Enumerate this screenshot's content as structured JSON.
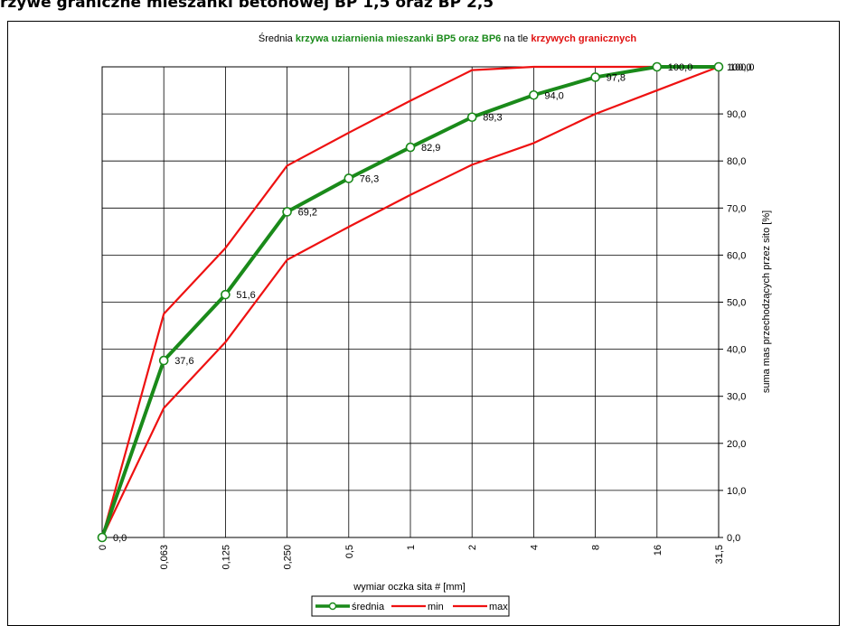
{
  "heading": "rzywe graniczne mieszanki betonowej BP 1,5 oraz BP 2,5",
  "chart_data": {
    "type": "line",
    "title_parts": [
      {
        "text": "Średnia ",
        "color": "#000000"
      },
      {
        "text": "krzywa uziarnienia mieszanki BP5 oraz BP6",
        "color": "#1a8a1a"
      },
      {
        "text": " na tle ",
        "color": "#000000"
      },
      {
        "text": "krzywych granicznych",
        "color": "#e01010"
      }
    ],
    "xlabel": "wymiar oczka sita # [mm]",
    "ylabel": "suma mas przechodzących przez sito [%]",
    "categories": [
      "0",
      "0,063",
      "0,125",
      "0,250",
      "0,5",
      "1",
      "2",
      "4",
      "8",
      "16",
      "31,5"
    ],
    "ylim": [
      0,
      100
    ],
    "yticks": [
      "0,0",
      "10,0",
      "20,0",
      "30,0",
      "40,0",
      "50,0",
      "60,0",
      "70,0",
      "80,0",
      "90,0",
      "100,0"
    ],
    "grid": true,
    "legend_position": "bottom",
    "series": [
      {
        "name": "średnia",
        "color": "#1a8a1a",
        "values": [
          0.0,
          37.6,
          51.6,
          69.2,
          76.3,
          82.9,
          89.3,
          94.0,
          97.8,
          100.0,
          100.0
        ],
        "labels": [
          "0,0",
          "37,6",
          "51,6",
          "69,2",
          "76,3",
          "82,9",
          "89,3",
          "94,0",
          "97,8",
          "100,0",
          "100,0"
        ]
      },
      {
        "name": "min",
        "color": "#ee1111",
        "values": [
          0,
          27.5,
          41.5,
          59.0,
          66.0,
          72.8,
          79.2,
          83.8,
          90.0,
          95.0,
          100
        ]
      },
      {
        "name": "max",
        "color": "#ee1111",
        "values": [
          0,
          47.5,
          61.5,
          79.0,
          86.0,
          92.8,
          99.3,
          100,
          100,
          100,
          100
        ]
      }
    ]
  }
}
